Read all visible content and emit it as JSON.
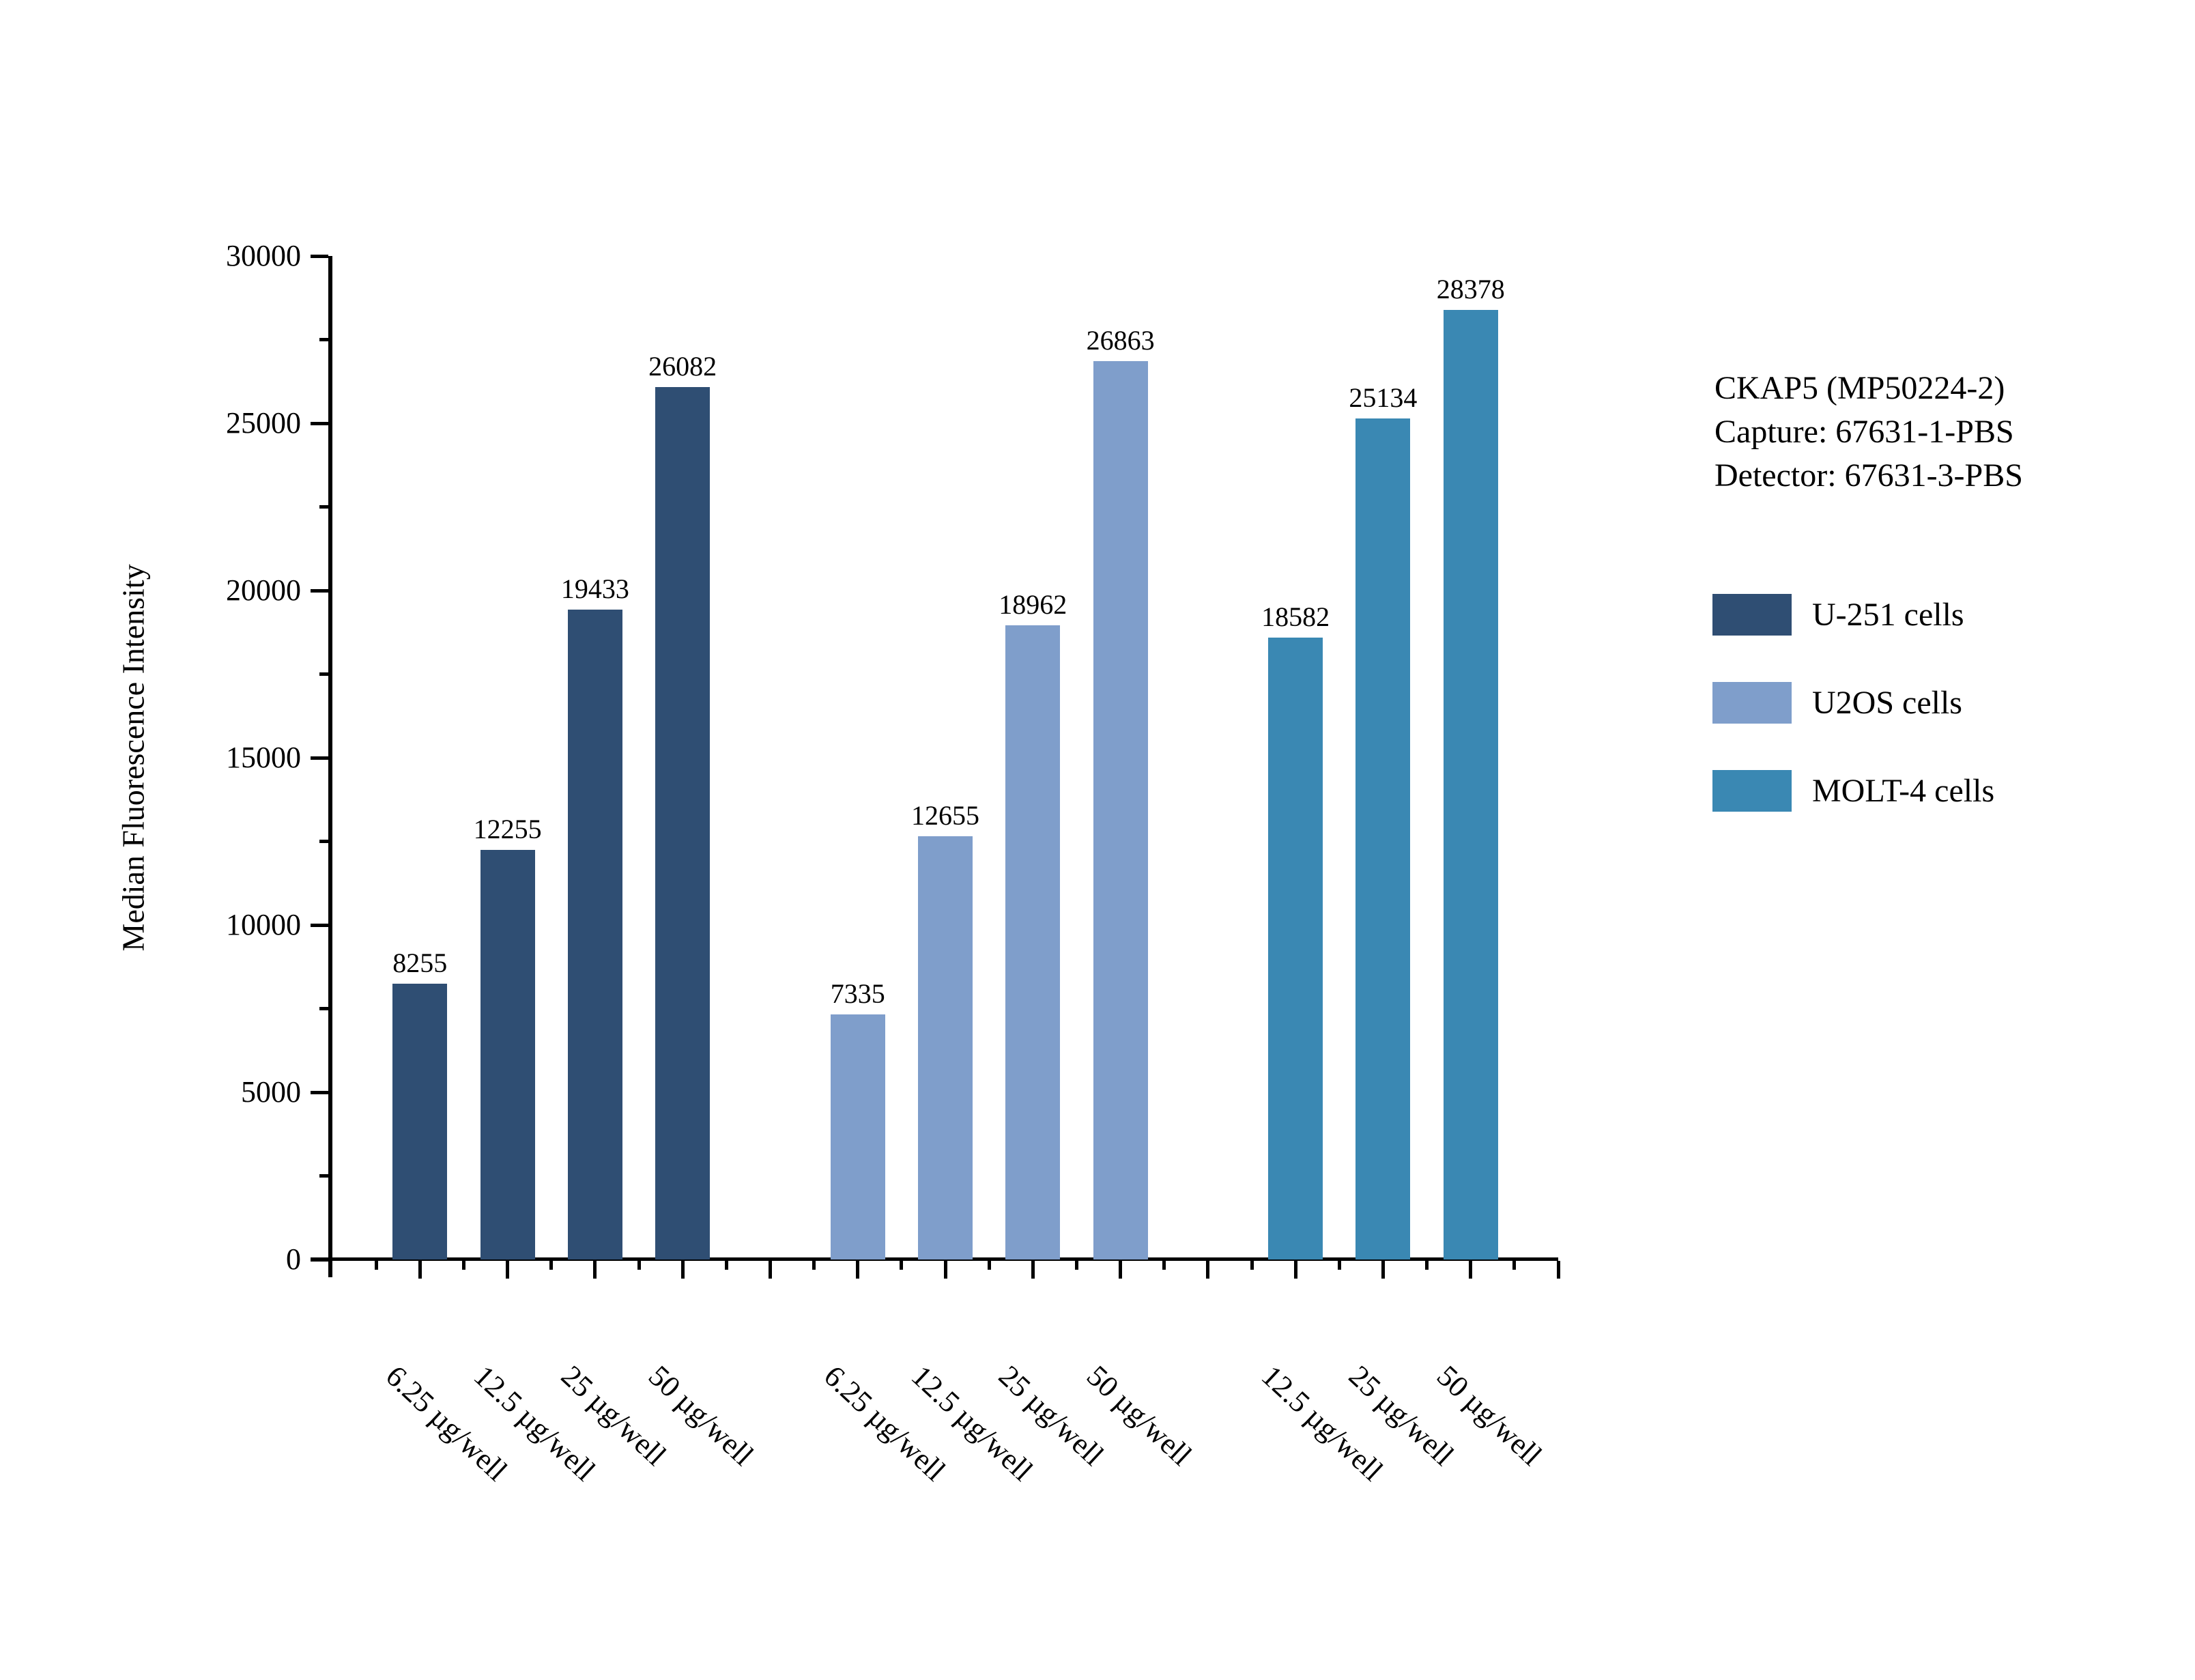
{
  "chart_data": {
    "type": "bar",
    "title": "",
    "xlabel": "",
    "ylabel": "Median Fluorescence Intensity",
    "ylim": [
      0,
      30000
    ],
    "y_major_step": 5000,
    "y_minor_step": 2500,
    "y_major_ticks": [
      0,
      5000,
      10000,
      15000,
      20000,
      25000,
      30000
    ],
    "grid": "off",
    "bar_value_labels_shown": true,
    "legend_position": "right",
    "series": [
      {
        "name": "U-251 cells",
        "color": "#2f4e73",
        "categories": [
          "6.25 µg/well",
          "12.5 µg/well",
          "25 µg/well",
          "50 µg/well"
        ],
        "values": [
          8255,
          12255,
          19433,
          26082
        ]
      },
      {
        "name": "U2OS cells",
        "color": "#7f9ecb",
        "categories": [
          "6.25 µg/well",
          "12.5 µg/well",
          "25 µg/well",
          "50 µg/well"
        ],
        "values": [
          7335,
          12655,
          18962,
          26863
        ]
      },
      {
        "name": "MOLT-4 cells",
        "color": "#3a88b3",
        "categories": [
          "12.5 µg/well",
          "25 µg/well",
          "50 µg/well"
        ],
        "values": [
          18582,
          25134,
          28378
        ]
      }
    ],
    "annotation": [
      "CKAP5 (MP50224-2)",
      "Capture: 67631-1-PBS",
      "Detector: 67631-3-PBS"
    ],
    "axis_color": "#000000",
    "text_color": "#000000",
    "background_color": "#ffffff"
  }
}
